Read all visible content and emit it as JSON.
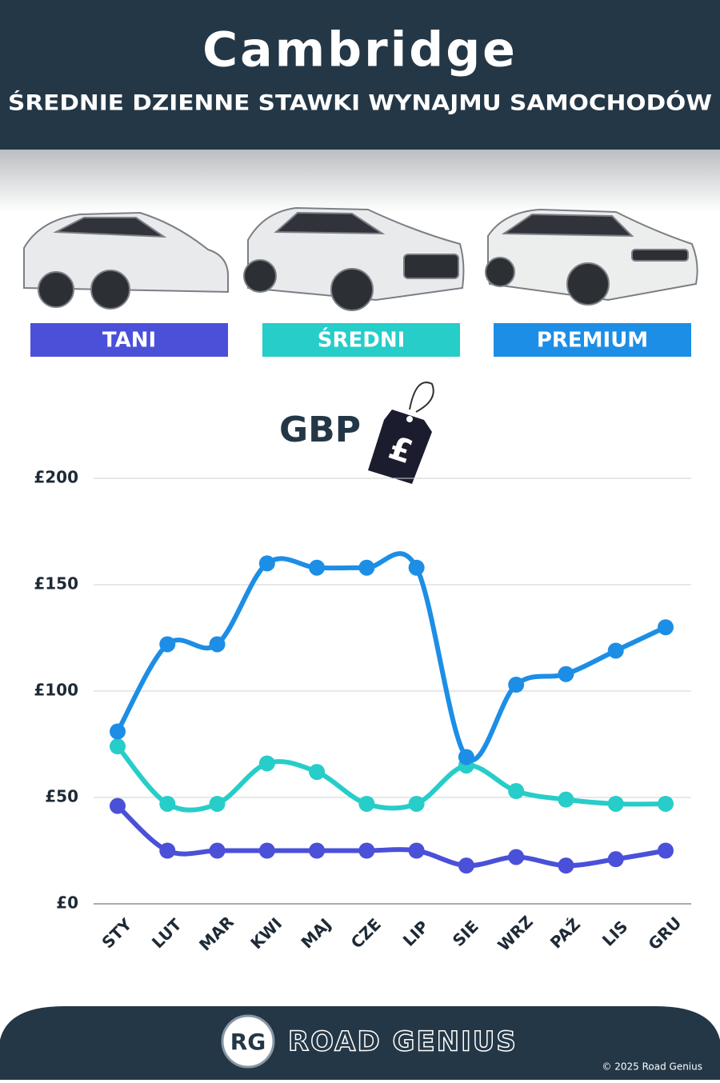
{
  "chart_data": {
    "type": "line",
    "title": "Cambridge",
    "subtitle": "ŚREDNIE DZIENNE STAWKI WYNAJMU SAMOCHODÓW",
    "currency_label": "GBP",
    "currency_symbol": "£",
    "categories": [
      "STY",
      "LUT",
      "MAR",
      "KWI",
      "MAJ",
      "CZE",
      "LIP",
      "SIE",
      "WRZ",
      "PAŹ",
      "LIS",
      "GRU"
    ],
    "series": [
      {
        "name": "TANI",
        "color": "#4a50d8",
        "values": [
          46,
          25,
          25,
          25,
          25,
          25,
          25,
          18,
          22,
          18,
          21,
          25
        ]
      },
      {
        "name": "ŚREDNI",
        "color": "#26cdc9",
        "values": [
          74,
          47,
          47,
          66,
          62,
          47,
          47,
          65,
          53,
          49,
          47,
          47
        ]
      },
      {
        "name": "PREMIUM",
        "color": "#1c8ee6",
        "values": [
          81,
          122,
          122,
          160,
          158,
          158,
          158,
          69,
          103,
          108,
          119,
          130
        ]
      }
    ],
    "ylim": [
      0,
      200
    ],
    "yticks": [
      {
        "value": 0,
        "label": "£0"
      },
      {
        "value": 50,
        "label": "£50"
      },
      {
        "value": 100,
        "label": "£100"
      },
      {
        "value": 150,
        "label": "£150"
      },
      {
        "value": 200,
        "label": "£200"
      }
    ],
    "grid": true
  },
  "footer": {
    "logo": "RG",
    "brand": "ROAD GENIUS",
    "copyright": "© 2025 Road Genius"
  }
}
